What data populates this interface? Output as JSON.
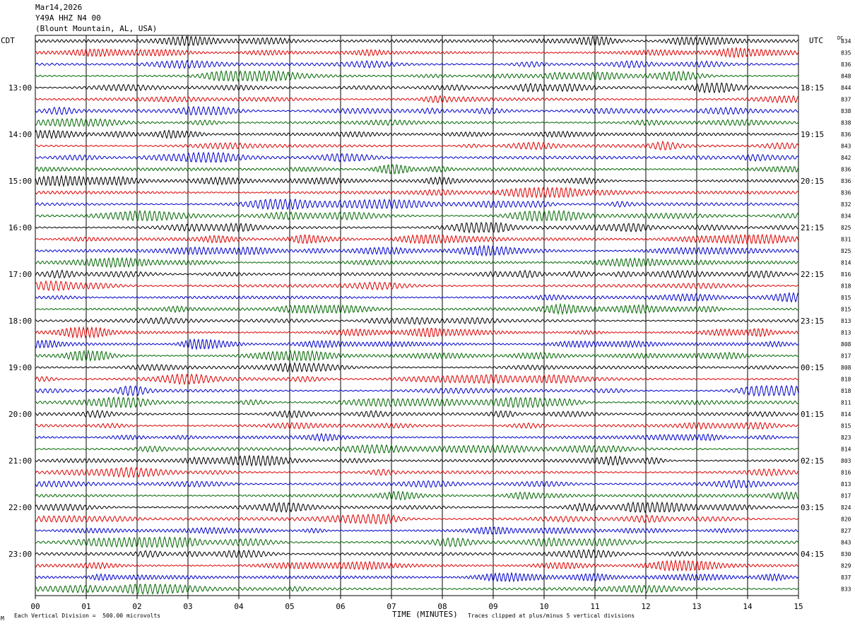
{
  "header": {
    "date": "Mar14,2026",
    "station": "Y49A HHZ N4 00",
    "location": "(Blount Mountain, AL, USA)"
  },
  "labels": {
    "left_tz": "CDT",
    "right_tz": "UTC",
    "dc_label": "DC",
    "xlabel": "TIME (MINUTES)",
    "scale_note": "Each Vertical Division =  500.00 microvolts",
    "clip_note": "Traces clipped at plus/minus 5 vertical divisions",
    "corner_mark": "M"
  },
  "colors": {
    "trace_cycle": [
      "#000000",
      "#dd0000",
      "#0000cc",
      "#006600"
    ],
    "grid": "#000000"
  },
  "chart_data": {
    "type": "line",
    "description_of_plot": "helicorder",
    "x_ticks": [
      "00",
      "01",
      "02",
      "03",
      "04",
      "05",
      "06",
      "07",
      "08",
      "09",
      "10",
      "11",
      "12",
      "13",
      "14",
      "15"
    ],
    "xlim": [
      0,
      15
    ],
    "left_hour_labels": [
      "13:00",
      "14:00",
      "15:00",
      "16:00",
      "17:00",
      "18:00",
      "19:00",
      "20:00",
      "21:00",
      "22:00",
      "23:00"
    ],
    "right_hour_labels": [
      "18:15",
      "19:15",
      "20:15",
      "21:15",
      "22:15",
      "23:15",
      "00:15",
      "01:15",
      "02:15",
      "03:15",
      "04:15"
    ],
    "dc_offsets": [
      "834",
      "835",
      "836",
      "848",
      "844",
      "837",
      "838",
      "838",
      "836",
      "843",
      "842",
      "836",
      "836",
      "836",
      "832",
      "834",
      "825",
      "831",
      "825",
      "814",
      "816",
      "818",
      "815",
      "815",
      "813",
      "813",
      "808",
      "817",
      "808",
      "818",
      "818",
      "811",
      "814",
      "815",
      "823",
      "814",
      "803",
      "816",
      "813",
      "817",
      "824",
      "820",
      "827",
      "843",
      "830",
      "829",
      "837",
      "833"
    ],
    "trace_count": 48
  }
}
